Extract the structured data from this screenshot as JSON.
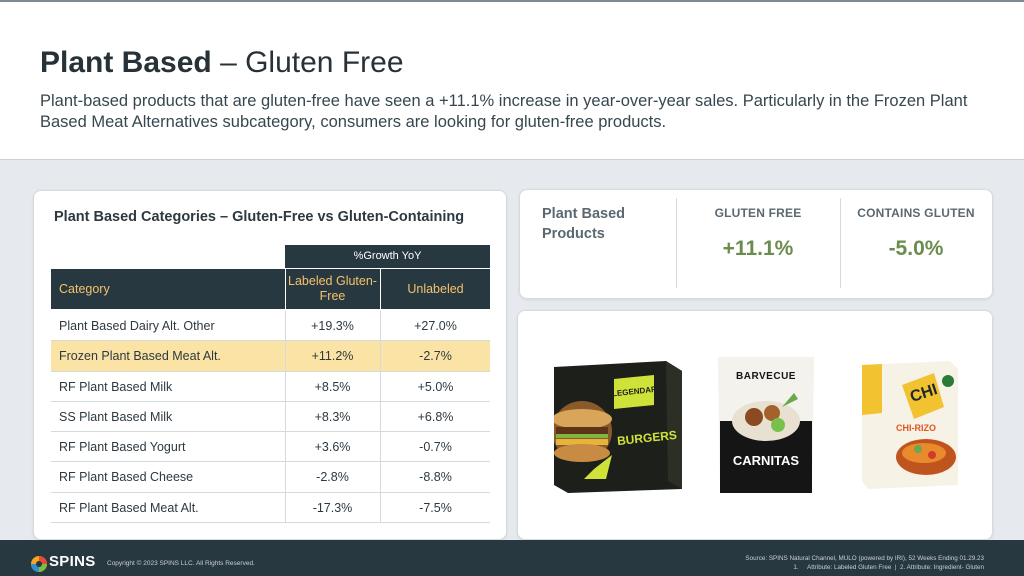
{
  "header": {
    "title_bold": "Plant Based",
    "title_rest": "– Gluten Free",
    "subtitle": "Plant-based products that are gluten-free have seen a +11.1% increase in year-over-year sales. Particularly in the Frozen Plant Based Meat Alternatives subcategory, consumers are looking for gluten-free products."
  },
  "table": {
    "title": "Plant Based Categories – Gluten-Free vs Gluten-Containing",
    "group_header": "%Growth YoY",
    "col_category": "Category",
    "col_labeled": "Labeled Gluten-Free",
    "col_unlabeled": "Unlabeled",
    "rows": [
      {
        "category": "Plant Based Dairy Alt. Other",
        "labeled": "+19.3%",
        "unlabeled": "+27.0%"
      },
      {
        "category": "Frozen Plant Based Meat Alt.",
        "labeled": "+11.2%",
        "unlabeled": "-2.7%"
      },
      {
        "category": "RF Plant Based Milk",
        "labeled": "+8.5%",
        "unlabeled": "+5.0%"
      },
      {
        "category": "SS Plant Based Milk",
        "labeled": "+8.3%",
        "unlabeled": "+6.8%"
      },
      {
        "category": "RF Plant Based Yogurt",
        "labeled": "+3.6%",
        "unlabeled": "-0.7%"
      },
      {
        "category": "RF Plant Based Cheese",
        "labeled": "-2.8%",
        "unlabeled": "-8.8%"
      },
      {
        "category": "RF Plant Based Meat Alt.",
        "labeled": "-17.3%",
        "unlabeled": "-7.5%"
      }
    ]
  },
  "stats": {
    "label": "Plant Based Products",
    "gluten_free_head": "GLUTEN FREE",
    "gluten_free_value": "+11.1%",
    "contains_head": "CONTAINS GLUTEN",
    "contains_value": "-5.0%"
  },
  "products": {
    "p1_brand": "LEGENDARY",
    "p1_name": "BURGERS",
    "p2_brand": "BARVECUE",
    "p2_name": "CARNITAS",
    "p3_brand": "CHI",
    "p3_name": "CHI-RIZO"
  },
  "footer": {
    "logo": "SPINS",
    "copyright": "Copyright © 2023 SPINS LLC. All Rights Reserved.",
    "source_line1": "Source: SPINS Natural Channel, MULO (powered by IRI), 52 Weeks Ending 01.29.23",
    "source_line2": "1.     Attribute: Labeled Gluten Free  |  2. Attribute: Ingredient- Gluten"
  },
  "colors": {
    "accent_gold": "#f5c26b",
    "highlight_row": "#fbe3a6",
    "header_dark": "#283840",
    "positive_green": "#6a8c4c"
  }
}
